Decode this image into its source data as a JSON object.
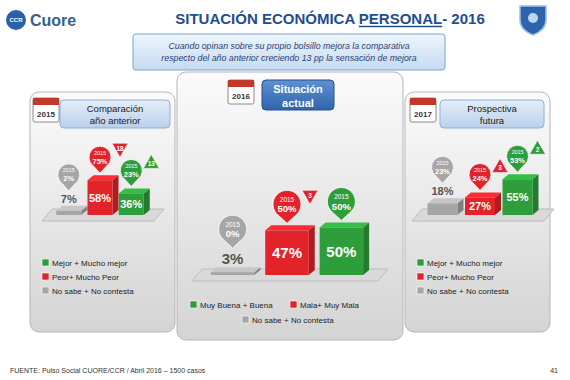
{
  "header": {
    "logo": "CCR",
    "brand": "Cuore",
    "title_parts": [
      "SITUACIÓN ECONÓMICA ",
      "PERSONAL",
      "- 2016"
    ],
    "subtitle": [
      "Cuando opinan sobre su propio bolsillo mejora la comparativa",
      "respecto del año anterior creciendo 13 pp la sensación de mejora"
    ]
  },
  "chart_data": [
    {
      "type": "bar",
      "title": [
        "Comparación",
        "año anterior"
      ],
      "icon_year": "2015",
      "categories": [
        "No sabe + No contesta",
        "Peor+ Mucho Peor",
        "Mejor + Mucho mejor"
      ],
      "values": [
        7,
        58,
        36
      ],
      "value_labels": [
        "7%",
        "58%",
        "36%"
      ],
      "colors": [
        "#a6a6a6",
        "#e2232a",
        "#2e9e3a"
      ],
      "previous_year": "2015",
      "previous_values": [
        2,
        75,
        23
      ],
      "previous_labels": [
        "2%",
        "75%",
        "23%"
      ],
      "changes": [
        null,
        -18,
        13
      ],
      "change_labels": [
        null,
        "18",
        "13"
      ],
      "ylim": [
        0,
        100
      ],
      "tick_labels": false,
      "data_labels": true
    },
    {
      "type": "bar",
      "title": [
        "Situación",
        "actual"
      ],
      "icon_year": "2016",
      "categories": [
        "No sabe + No contesta",
        "Mala+ Muy Mala",
        "Muy Buena + Buena"
      ],
      "values": [
        3,
        47,
        50
      ],
      "value_labels": [
        "3%",
        "47%",
        "50%"
      ],
      "colors": [
        "#a6a6a6",
        "#e2232a",
        "#2e9e3a"
      ],
      "previous_year": "2015",
      "previous_values": [
        0,
        50,
        50
      ],
      "previous_labels": [
        "0%",
        "50%",
        "50%"
      ],
      "changes": [
        null,
        -3,
        null
      ],
      "change_labels": [
        null,
        "3",
        null
      ],
      "ylim": [
        0,
        100
      ],
      "tick_labels": false,
      "data_labels": true
    },
    {
      "type": "bar",
      "title": [
        "Prospectiva",
        "futura"
      ],
      "icon_year": "2017",
      "categories": [
        "No sabe + No contesta",
        "Peor+ Mucho Peor",
        "Mejor + Mucho mejor"
      ],
      "values": [
        18,
        27,
        55
      ],
      "value_labels": [
        "18%",
        "27%",
        "55%"
      ],
      "colors": [
        "#a6a6a6",
        "#e2232a",
        "#2e9e3a"
      ],
      "previous_year": "2015",
      "previous_values": [
        23,
        24,
        53
      ],
      "previous_labels": [
        "23%",
        "24%",
        "53%"
      ],
      "changes": [
        null,
        3,
        2
      ],
      "change_labels": [
        null,
        "3",
        "2"
      ],
      "ylim": [
        0,
        100
      ],
      "tick_labels": false,
      "data_labels": true
    }
  ],
  "footer": {
    "source": "FUENTE: Pulso Social CUORE/CCR / Abril 2016 – 1500 casos",
    "page": "41"
  }
}
